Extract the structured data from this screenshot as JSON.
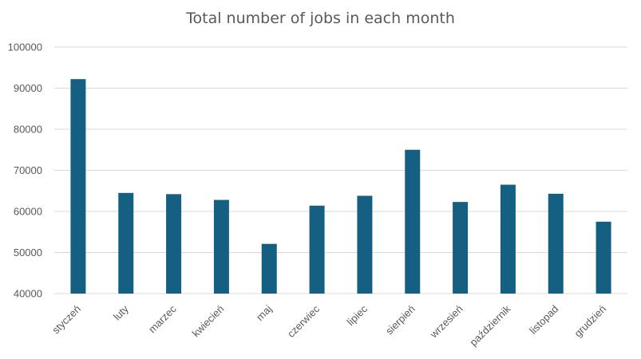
{
  "chart_data": {
    "type": "bar",
    "title": "Total number of jobs in each month",
    "xlabel": "",
    "ylabel": "",
    "categories": [
      "styczeń",
      "luty",
      "marzec",
      "kwiecień",
      "maj",
      "czerwiec",
      "lipiec",
      "sierpień",
      "wrzesień",
      "październik",
      "listopad",
      "grudzień"
    ],
    "values": [
      92200,
      64500,
      64200,
      62800,
      52100,
      61400,
      63800,
      75000,
      62300,
      66500,
      64300,
      57500
    ],
    "ylim": [
      40000,
      100000
    ],
    "yticks": [
      40000,
      50000,
      60000,
      70000,
      80000,
      90000,
      100000
    ],
    "grid": true,
    "legend": "none",
    "bar_color": "#156082"
  }
}
